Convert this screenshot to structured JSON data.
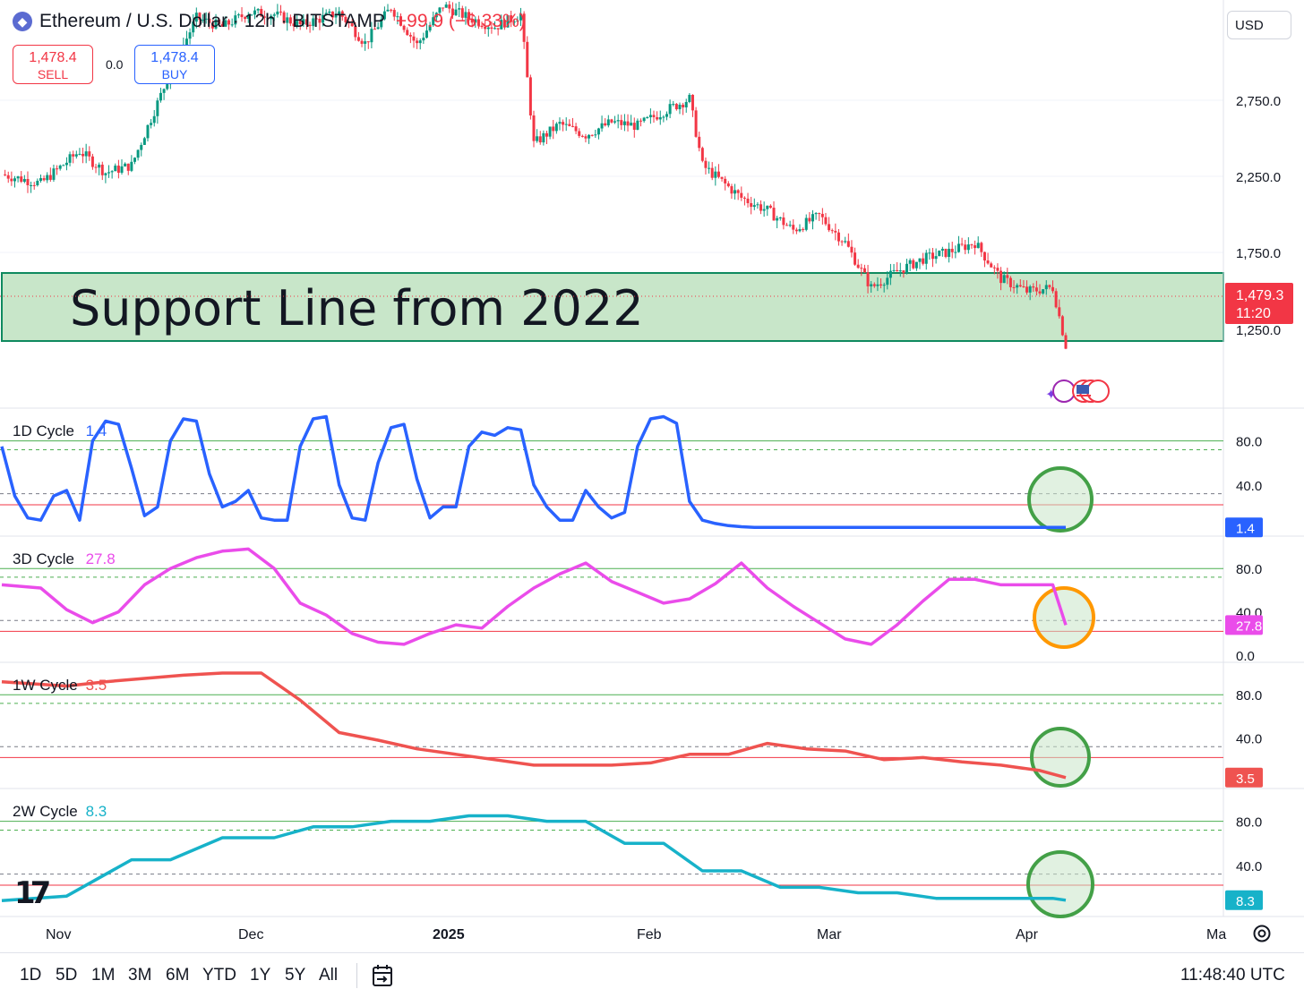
{
  "header": {
    "symbol": "Ethereum / U.S. Dollar · 12h · BITSTAMP",
    "change": "−99.9 (−6.33%)",
    "logo_icon": "ethereum-icon"
  },
  "trade": {
    "sell_price": "1,478.4",
    "sell_label": "SELL",
    "spread": "0.0",
    "buy_price": "1,478.4",
    "buy_label": "BUY"
  },
  "currency": "USD",
  "annotation": "Support Line from 2022",
  "price_label": {
    "value": "1,479.3",
    "countdown": "11:20"
  },
  "colors": {
    "up": "#089981",
    "down": "#f23645",
    "zone": "#c8e6c9",
    "zone_border": "#0f8a5f",
    "cycle_1d": "#2962ff",
    "cycle_3d": "#ea4cea",
    "cycle_1w": "#ef5350",
    "cycle_2w": "#17b2c9",
    "circle_green": "#43a047",
    "circle_orange": "#ff9800"
  },
  "chart_data": {
    "type": "candlestick",
    "x_ticks": [
      "Nov",
      "Dec",
      "2025",
      "Feb",
      "Mar",
      "Apr",
      "Ma"
    ],
    "price_axis_ticks": [
      "2,750.0",
      "2,250.0",
      "1,750.0",
      "1,250.0"
    ],
    "price_ylim": [
      1130,
      3400
    ],
    "price_path": [
      [
        0,
        2430
      ],
      [
        3,
        2380
      ],
      [
        6,
        2560
      ],
      [
        8,
        2440
      ],
      [
        10,
        2480
      ],
      [
        13,
        3000
      ],
      [
        15,
        3300
      ],
      [
        17,
        3250
      ],
      [
        19,
        3330
      ],
      [
        21,
        3320
      ],
      [
        23,
        3260
      ],
      [
        26,
        3330
      ],
      [
        28,
        3160
      ],
      [
        30,
        3360
      ],
      [
        32,
        3150
      ],
      [
        34,
        3370
      ],
      [
        36,
        3300
      ],
      [
        38,
        3250
      ],
      [
        40,
        3320
      ],
      [
        41,
        2600
      ],
      [
        43,
        2710
      ],
      [
        45,
        2650
      ],
      [
        47,
        2720
      ],
      [
        49,
        2700
      ],
      [
        51,
        2780
      ],
      [
        53,
        2850
      ],
      [
        54,
        2480
      ],
      [
        57,
        2300
      ],
      [
        59,
        2230
      ],
      [
        61,
        2120
      ],
      [
        63,
        2200
      ],
      [
        65,
        2050
      ],
      [
        67,
        1800
      ],
      [
        69,
        1890
      ],
      [
        71,
        1960
      ],
      [
        73,
        2000
      ],
      [
        75,
        2050
      ],
      [
        77,
        1850
      ],
      [
        79,
        1780
      ],
      [
        81,
        1800
      ],
      [
        82,
        1479
      ]
    ],
    "support_zone": [
      1240,
      1690
    ],
    "current_price": 1479.3,
    "panels": [
      {
        "title": "1D Cycle",
        "value": "1.4",
        "value_text": "1.4",
        "color_key": "cycle_1d",
        "ticks": [
          "80.0",
          "40.0"
        ],
        "x": [
          0,
          1,
          2,
          3,
          4,
          5,
          6,
          7,
          8,
          9,
          10,
          11,
          12,
          13,
          14,
          15,
          16,
          17,
          18,
          19,
          20,
          21,
          22,
          23,
          24,
          25,
          26,
          27,
          28,
          29,
          30,
          31,
          32,
          33,
          34,
          35,
          36,
          37,
          38,
          39,
          40,
          41,
          42,
          43,
          44,
          45,
          46,
          47,
          48,
          49,
          50,
          51,
          52,
          53,
          54,
          55,
          56,
          57,
          58,
          59,
          60,
          61,
          62,
          63,
          64,
          65,
          66,
          67,
          68,
          69,
          70,
          71,
          72,
          73,
          74,
          75,
          76,
          77,
          78,
          79,
          80,
          81,
          82
        ],
        "y": [
          75,
          30,
          10,
          8,
          30,
          35,
          8,
          80,
          98,
          95,
          55,
          12,
          20,
          80,
          100,
          98,
          50,
          20,
          25,
          35,
          10,
          8,
          8,
          75,
          100,
          102,
          40,
          10,
          8,
          60,
          92,
          95,
          45,
          10,
          20,
          20,
          75,
          88,
          85,
          92,
          90,
          40,
          20,
          8,
          8,
          35,
          20,
          10,
          15,
          75,
          100,
          102,
          96,
          25,
          8,
          5,
          3,
          2,
          1.5,
          1.4,
          1.4,
          1.4,
          1.4,
          1.4,
          1.4,
          1.4,
          1.4,
          1.4,
          1.4,
          1.4,
          1.4,
          1.4,
          1.4,
          1.4,
          1.4,
          1.4,
          1.4,
          1.4,
          1.4,
          1.4,
          1.4,
          1.4,
          1.4
        ]
      },
      {
        "title": "3D Cycle",
        "value": "27.8",
        "value_text": "27.8",
        "color_key": "cycle_3d",
        "ticks": [
          "80.0",
          "40.0",
          "0.0"
        ],
        "x": [
          0,
          3,
          5,
          7,
          9,
          11,
          13,
          15,
          17,
          19,
          21,
          23,
          25,
          27,
          29,
          31,
          33,
          35,
          37,
          39,
          41,
          43,
          45,
          47,
          49,
          51,
          53,
          55,
          57,
          59,
          61,
          63,
          65,
          67,
          69,
          71,
          73,
          75,
          77,
          79,
          81,
          82
        ],
        "y": [
          65,
          62,
          42,
          30,
          40,
          65,
          80,
          90,
          96,
          98,
          80,
          48,
          37,
          20,
          12,
          10,
          20,
          28,
          25,
          45,
          62,
          75,
          85,
          68,
          58,
          48,
          52,
          66,
          85,
          62,
          45,
          30,
          15,
          10,
          28,
          50,
          70,
          70,
          65,
          65,
          65,
          27.8
        ]
      },
      {
        "title": "1W Cycle",
        "value": "3.5",
        "value_text": "3.5",
        "color_key": "cycle_1w",
        "ticks": [
          "80.0",
          "40.0"
        ],
        "x": [
          0,
          5,
          8,
          11,
          14,
          17,
          20,
          23,
          26,
          29,
          32,
          35,
          38,
          41,
          44,
          47,
          50,
          53,
          56,
          59,
          62,
          65,
          68,
          71,
          74,
          77,
          80,
          82
        ],
        "y": [
          92,
          88,
          92,
          95,
          98,
          100,
          100,
          75,
          45,
          38,
          30,
          25,
          20,
          15,
          15,
          15,
          17,
          25,
          25,
          35,
          30,
          28,
          20,
          22,
          18,
          15,
          10,
          3.5
        ]
      },
      {
        "title": "2W Cycle",
        "value": "8.3",
        "value_text": "8.3",
        "color_key": "cycle_2w",
        "ticks": [
          "80.0",
          "40.0"
        ],
        "x": [
          0,
          5,
          10,
          13,
          17,
          21,
          24,
          27,
          30,
          33,
          36,
          39,
          42,
          45,
          48,
          51,
          54,
          57,
          60,
          63,
          66,
          69,
          72,
          75,
          78,
          81,
          82
        ],
        "y": [
          8,
          12,
          45,
          45,
          65,
          65,
          75,
          75,
          80,
          80,
          85,
          85,
          80,
          80,
          60,
          60,
          35,
          35,
          20,
          20,
          15,
          15,
          10,
          10,
          10,
          10,
          8.3
        ]
      }
    ],
    "panel_ylim": [
      0,
      100
    ]
  },
  "ranges": [
    "1D",
    "5D",
    "1M",
    "3M",
    "6M",
    "YTD",
    "1Y",
    "5Y",
    "All"
  ],
  "time": "11:48:40 UTC"
}
